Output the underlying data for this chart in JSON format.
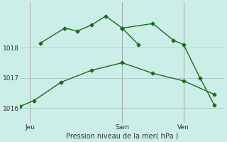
{
  "background_color": "#cceee8",
  "grid_color": "#aacccc",
  "line_color": "#1a6b1a",
  "xlabel": "Pression niveau de la mer( hPa )",
  "xlim": [
    0,
    10
  ],
  "ylim": [
    1015.5,
    1019.5
  ],
  "yticks": [
    1016,
    1017,
    1018
  ],
  "xtick_positions": [
    0.5,
    5.0,
    8.0
  ],
  "xtick_labels": [
    "Jeu",
    "Sam",
    "Ven"
  ],
  "vline_x": [
    0.5,
    5.0,
    8.0
  ],
  "line1_x": [
    1.0,
    2.2,
    2.8,
    3.5,
    4.2,
    5.0,
    5.8
  ],
  "line1_y": [
    1018.15,
    1018.65,
    1018.55,
    1018.75,
    1019.05,
    1018.65,
    1018.1
  ],
  "line2_x": [
    0.0,
    0.7,
    2.0,
    3.5,
    5.0,
    6.5,
    8.0,
    9.5
  ],
  "line2_y": [
    1016.05,
    1016.25,
    1016.85,
    1017.25,
    1017.5,
    1017.15,
    1016.9,
    1016.45
  ],
  "line3_x": [
    5.0,
    6.5,
    7.5,
    8.0,
    8.8,
    9.5
  ],
  "line3_y": [
    1018.65,
    1018.8,
    1018.25,
    1018.1,
    1017.0,
    1016.1
  ]
}
